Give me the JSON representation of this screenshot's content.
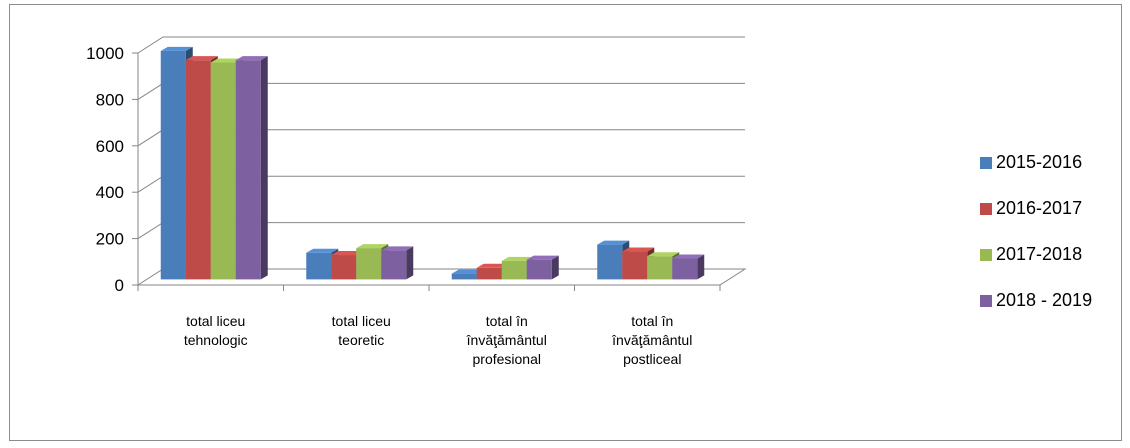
{
  "chart_data": {
    "type": "bar",
    "categories": [
      [
        "total  liceu",
        "tehnologic"
      ],
      [
        "total  liceu",
        "teoretic"
      ],
      [
        "total în",
        "învăţământul",
        "profesional"
      ],
      [
        "total în",
        "învăţământul",
        "postliceal"
      ]
    ],
    "series": [
      {
        "name": "2015-2016",
        "values": [
          985,
          115,
          25,
          150
        ],
        "color": "#4a7ebb"
      },
      {
        "name": "2016-2017",
        "values": [
          945,
          105,
          50,
          120
        ],
        "color": "#be4b48"
      },
      {
        "name": "2017-2018",
        "values": [
          935,
          135,
          80,
          100
        ],
        "color": "#98b954"
      },
      {
        "name": "2018 - 2019",
        "values": [
          945,
          125,
          85,
          90
        ],
        "color": "#7d60a0"
      }
    ],
    "yticks": [
      "0",
      "200",
      "400",
      "600",
      "800",
      "1000"
    ],
    "ylim": [
      0,
      1000
    ],
    "grid": true,
    "legend": "right",
    "style": "3d-clustered-column"
  }
}
